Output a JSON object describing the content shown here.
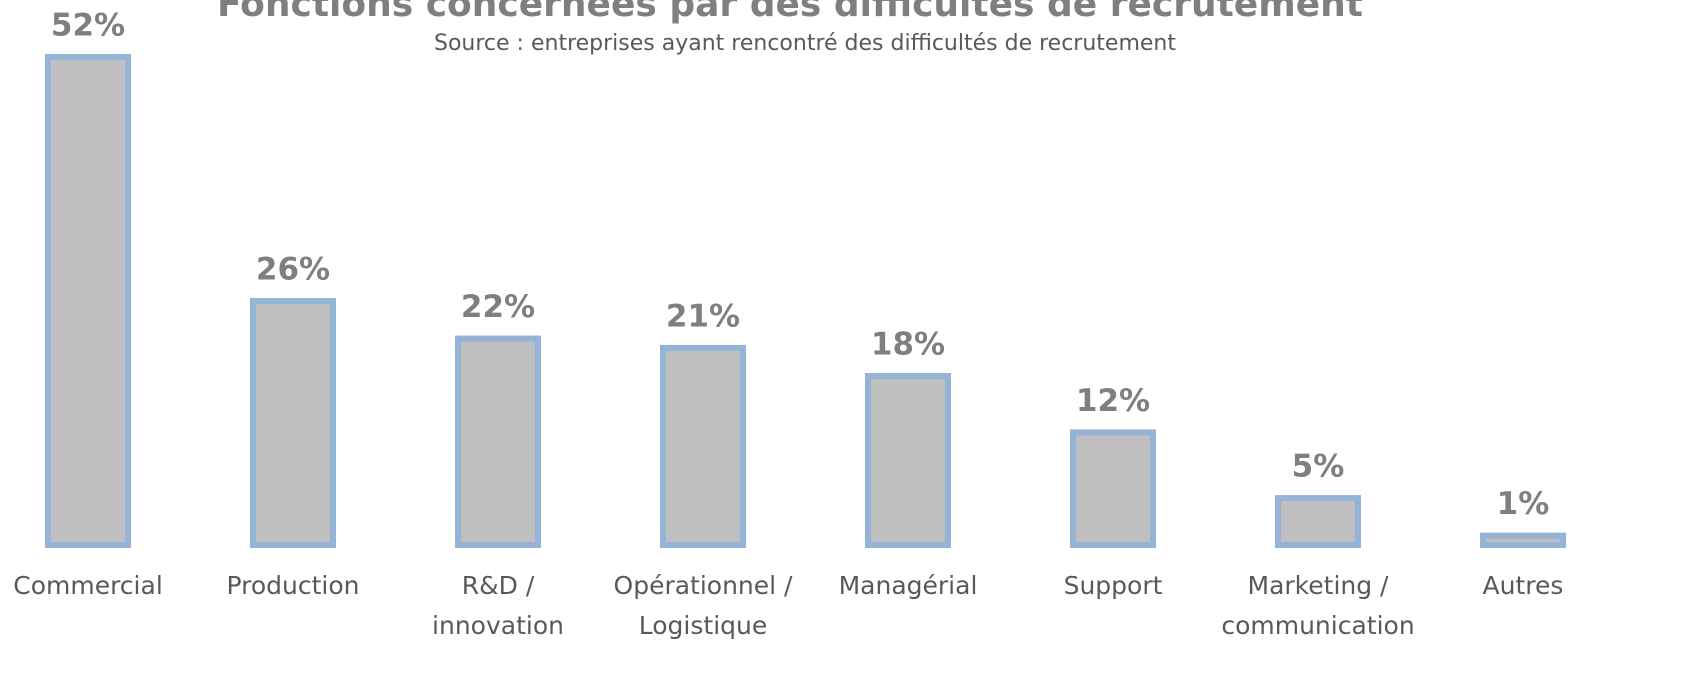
{
  "chart_data": {
    "type": "bar",
    "title": "Fonctions concernées par des difficultés de recrutement",
    "subtitle": "Source : entreprises ayant rencontré des difficultés de recrutement",
    "categories": [
      "Commercial",
      "Production",
      "R&D /\ninnovation",
      "Opérationnel /\nLogistique",
      "Managérial",
      "Support",
      "Marketing /\ncommunication",
      "Autres"
    ],
    "values": [
      52,
      26,
      22,
      21,
      18,
      12,
      5,
      1
    ],
    "value_labels": [
      "52%",
      "26%",
      "22%",
      "21%",
      "18%",
      "12%",
      "5%",
      "1%"
    ],
    "color": "#bfbfbf",
    "edge_color": "#95b3d7"
  }
}
